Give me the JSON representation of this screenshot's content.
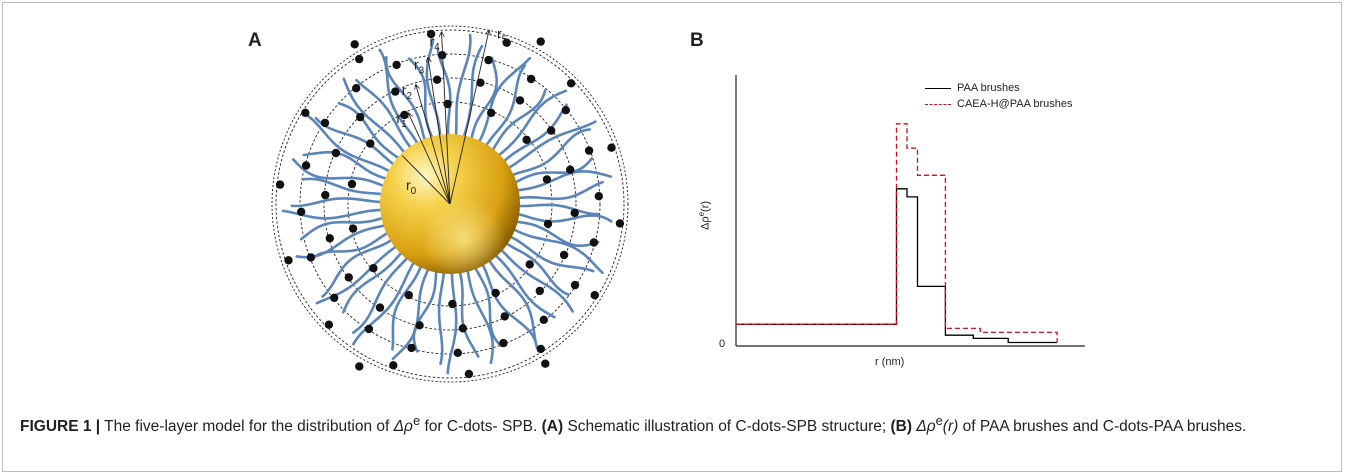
{
  "figure": {
    "panel_a_letter": "A",
    "panel_b_letter": "B",
    "radius_labels": [
      "r",
      "r",
      "r",
      "r",
      "r",
      "r"
    ],
    "radius_subscripts": [
      "0",
      "1",
      "2",
      "3",
      "4",
      "5"
    ],
    "colors": {
      "brush": "#5b85b8",
      "core": "#e7b21c",
      "dot": "#111111",
      "paa": "#000000",
      "caea": "#c0141a"
    }
  },
  "chart_data": {
    "type": "line",
    "title": "",
    "xlabel": "r (nm)",
    "ylabel_base": "Δρ",
    "ylabel_sup": "e",
    "ylabel_tail": "(r)",
    "zero_label": "0",
    "legend_position": "top-right",
    "xlim": [
      0,
      100
    ],
    "ylim": [
      0,
      100
    ],
    "series": [
      {
        "name": "PAA brushes",
        "style": "solid",
        "x": [
          0,
          46,
          46,
          49,
          49,
          52,
          52,
          60,
          60,
          68,
          68,
          78,
          78,
          92
        ],
        "y": [
          8,
          8,
          58,
          58,
          55,
          55,
          22,
          22,
          4,
          4,
          2.8,
          2.8,
          1.3,
          1.3
        ]
      },
      {
        "name": "CAEA-H@PAA brushes",
        "style": "dashed",
        "x": [
          0,
          46,
          46,
          49,
          49,
          52,
          52,
          60,
          60,
          70,
          70,
          92,
          92
        ],
        "y": [
          8,
          8,
          82,
          82,
          73,
          73,
          63,
          63,
          6.5,
          6.5,
          5,
          5,
          1.3
        ]
      }
    ]
  },
  "caption": {
    "label": "FIGURE 1 |",
    "part1": "The five-layer model for the distribution of",
    "symbol": "Δρ",
    "sup": "e",
    "part2": "for C-dots- SPB.",
    "a_label": "(A)",
    "a_text": "Schematic illustration of C-dots-SPB structure;",
    "b_label": "(B)",
    "b_symbol": "Δρ",
    "b_sup": "e",
    "b_arg": "(r)",
    "b_text": "of PAA brushes and C-dots-PAA brushes."
  }
}
